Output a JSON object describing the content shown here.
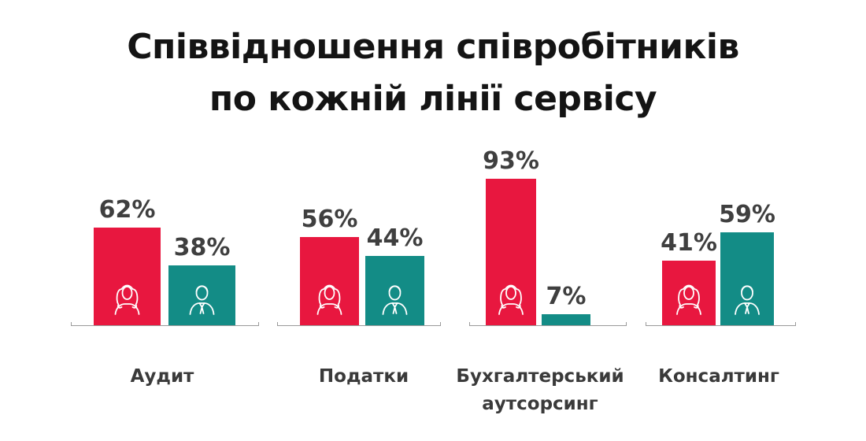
{
  "title": {
    "line1": "Співвідношення співробітників",
    "line2": "по кожній лінії сервісу"
  },
  "colors": {
    "female": "#e8173f",
    "male": "#138c86",
    "baseline": "#9a9a9a",
    "text": "#3f3f3f"
  },
  "chart_data": {
    "type": "bar",
    "title": "Співвідношення співробітників по кожній лінії сервісу",
    "categories": [
      "Аудит",
      "Податки",
      "Бухгалтерський аутсорсинг",
      "Консалтинг"
    ],
    "category_lines": [
      [
        "Аудит"
      ],
      [
        "Податки"
      ],
      [
        "Бухгалтерський",
        "аутсорсинг"
      ],
      [
        "Консалтинг"
      ]
    ],
    "series": [
      {
        "icon": "woman-icon",
        "color": "#e8173f",
        "values": [
          62,
          56,
          93,
          41
        ],
        "labels": [
          "62%",
          "56%",
          "93%",
          "41%"
        ]
      },
      {
        "icon": "man-icon",
        "color": "#138c86",
        "values": [
          38,
          44,
          7,
          59
        ],
        "labels": [
          "38%",
          "44%",
          "7%",
          "59%"
        ]
      }
    ],
    "value_unit": "%",
    "ylim": [
      0,
      100
    ],
    "grid": false,
    "legend": "none"
  }
}
